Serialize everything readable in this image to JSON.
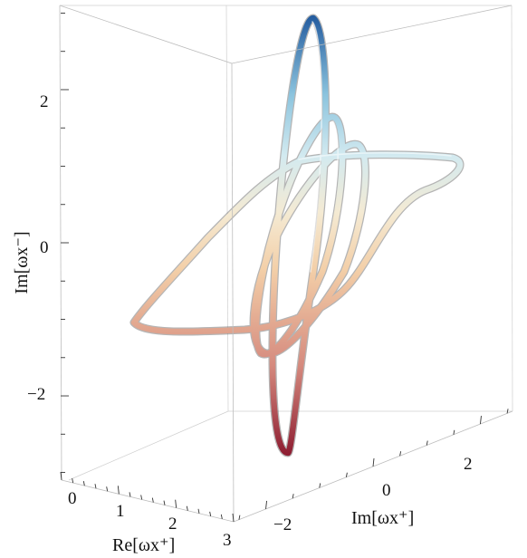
{
  "chart_data": {
    "type": "line",
    "subtype": "3d-parametric-tube",
    "title": "",
    "axes": {
      "x": {
        "label": "Re[ωx⁺]",
        "ticks": [
          "0",
          "1",
          "2",
          "3"
        ],
        "range": [
          0,
          3
        ]
      },
      "y": {
        "label": "Im[ωx⁺]",
        "ticks": [
          "−2",
          "0",
          "2"
        ],
        "range": [
          -2.6,
          2.6
        ]
      },
      "z": {
        "label": "Im[ωx⁻]",
        "ticks": [
          "−2",
          "0",
          "2"
        ],
        "range": [
          -3.1,
          3.1
        ]
      }
    },
    "colormap": {
      "low": "#a8323e",
      "mid": "#f2dfc0",
      "high": "#2d6fb3"
    },
    "series": [
      {
        "loop": 1,
        "z_peak": 3.1,
        "z_trough": -2.9,
        "y_extent": 0.3
      },
      {
        "loop": 2,
        "z_peak": 1.7,
        "z_trough": -1.6,
        "y_extent": 1.0
      },
      {
        "loop": 3,
        "z_peak": 1.4,
        "z_trough": -1.3,
        "y_extent": 1.7
      },
      {
        "loop": 4,
        "z_peak": 1.2,
        "z_trough": -1.1,
        "y_extent": 2.6
      }
    ],
    "grid": false,
    "box": true
  }
}
